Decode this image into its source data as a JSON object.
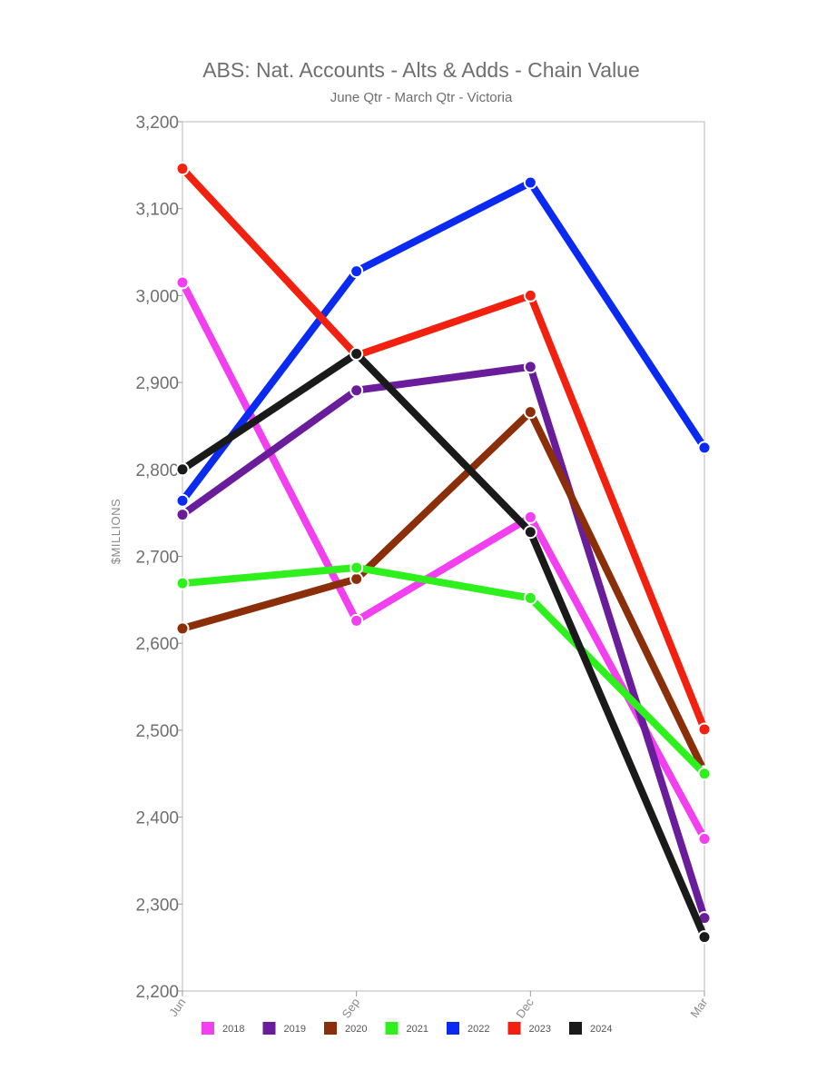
{
  "chart_data": {
    "type": "line",
    "title": "ABS: Nat. Accounts - Alts & Adds - Chain Value",
    "subtitle": "June Qtr - March Qtr - Victoria",
    "xlabel": "",
    "ylabel": "$MILLIONS",
    "categories": [
      "Jun",
      "Sep",
      "Dec",
      "Mar"
    ],
    "ylim": [
      2200,
      3200
    ],
    "yticks": [
      2200,
      2300,
      2400,
      2500,
      2600,
      2700,
      2800,
      2900,
      3000,
      3100,
      3200
    ],
    "ytick_labels": [
      "2,200",
      "2,300",
      "2,400",
      "2,500",
      "2,600",
      "2,700",
      "2,800",
      "2,900",
      "3,000",
      "3,100",
      "3,200"
    ],
    "grid": false,
    "legend_position": "bottom",
    "series": [
      {
        "name": "2018",
        "color": "#f23ff0",
        "values": [
          3015,
          2626,
          2745,
          2375
        ]
      },
      {
        "name": "2019",
        "color": "#6a1d9a",
        "values": [
          2748,
          2891,
          2918,
          2284
        ]
      },
      {
        "name": "2020",
        "color": "#8b2e0a",
        "values": [
          2617,
          2674,
          2866,
          2452
        ]
      },
      {
        "name": "2021",
        "color": "#2ef01c",
        "values": [
          2669,
          2687,
          2652,
          2450
        ]
      },
      {
        "name": "2022",
        "color": "#0a2af2",
        "values": [
          2764,
          3028,
          3130,
          2825
        ]
      },
      {
        "name": "2023",
        "color": "#f2200f",
        "values": [
          3146,
          2931,
          3000,
          2501
        ]
      },
      {
        "name": "2024",
        "color": "#1a1a1a",
        "values": [
          2800,
          2933,
          2728,
          2262
        ]
      }
    ]
  }
}
